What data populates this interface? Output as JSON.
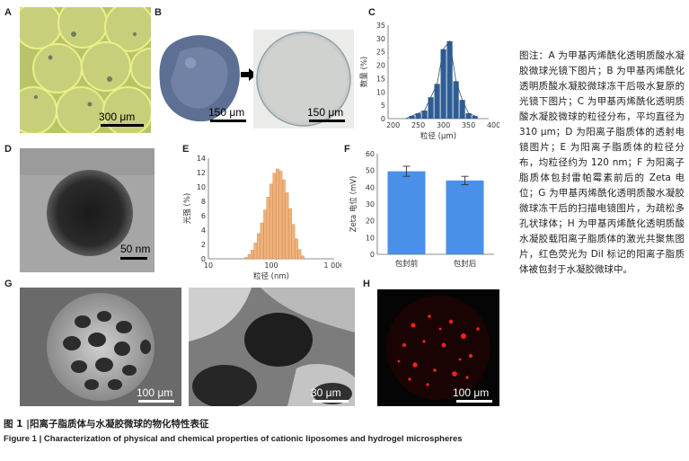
{
  "panels": {
    "A": {
      "label": "A",
      "scale_text": "300 μm"
    },
    "B": {
      "label": "B",
      "left_scale_text": "150 μm",
      "right_scale_text": "150 μm"
    },
    "D": {
      "label": "D",
      "scale_text": "50 nm"
    },
    "G": {
      "label": "G",
      "left_scale_text": "100 μm",
      "right_scale_text": "30 μm"
    },
    "H": {
      "label": "H",
      "scale_text": "100 μm"
    }
  },
  "chart_data": [
    {
      "panel": "C",
      "type": "bar",
      "categories": [
        225,
        237.5,
        250,
        262.5,
        275,
        287.5,
        300,
        312.5,
        325,
        337.5,
        350,
        362.5
      ],
      "values": [
        0,
        1,
        2,
        3,
        8,
        13,
        26,
        29,
        14,
        7,
        2,
        1
      ],
      "xlabel": "粒径 (μm)",
      "ylabel": "数量 (%)",
      "xlim": [
        190,
        390
      ],
      "ylim": [
        0,
        35
      ],
      "xticks": [
        200,
        250,
        300,
        350,
        400
      ],
      "yticks": [
        0,
        5,
        10,
        15,
        20,
        25,
        30,
        35
      ],
      "color": "#2f5d93"
    },
    {
      "panel": "E",
      "type": "bar",
      "x_log": true,
      "x": [
        40,
        45,
        50,
        56,
        63,
        71,
        80,
        89,
        100,
        112,
        126,
        141,
        158,
        178,
        200,
        224,
        251,
        282,
        316
      ],
      "values": [
        0.2,
        0.6,
        1.2,
        2.2,
        3.5,
        5.0,
        6.8,
        8.6,
        10.4,
        11.9,
        12.5,
        12.2,
        11.0,
        9.2,
        7.0,
        4.8,
        2.8,
        1.3,
        0.4
      ],
      "xlabel": "粒径 (nm)",
      "ylabel": "光强 (%)",
      "xlim": [
        10,
        1000
      ],
      "ylim": [
        0,
        14
      ],
      "xticks": [
        "10",
        "100",
        "1 000"
      ],
      "yticks": [
        0,
        2,
        4,
        6,
        8,
        10,
        12,
        14
      ],
      "color": "#f0b27a"
    },
    {
      "panel": "F",
      "type": "bar",
      "categories": [
        "包封前",
        "包封后"
      ],
      "values": [
        49.5,
        44
      ],
      "errors": [
        3,
        2.5
      ],
      "xlabel": "",
      "ylabel": "Zeta 电位 (mV)",
      "ylim": [
        0,
        60
      ],
      "yticks": [
        0,
        10,
        20,
        30,
        40,
        50,
        60
      ],
      "color": "#4a8fe8"
    }
  ],
  "caption_zh": "图注：A 为甲基丙烯酰化透明质酸水凝胶微球光镜下图片；B 为甲基丙烯酰化透明质酸水凝胶微球冻干后吸水复原的光镜下图片；C 为甲基丙烯酰化透明质酸水凝胶微球的粒径分布，平均直径为 310 μm；D 为阳离子脂质体的透射电镜图片；E 为阳离子脂质体的粒径分布，均粒径约为 120 nm；F 为阳离子脂质体包封雷帕霉素前后的 Zeta 电位；G 为甲基丙烯酰化透明质酸水凝胶微球冻干后的扫描电镜图片，为疏松多孔状球体；H 为甲基丙烯酰化透明质酸水凝胶载阳离子脂质体的激光共聚焦图片，红色荧光为 DiI 标记的阳离子脂质体被包封于水凝胶微球中。",
  "figure_title_zh": "图 1  |阳离子脂质体与水凝胶微球的物化特性表征",
  "figure_title_en": "Figure 1  |  Characterization of physical and chemical properties of cationic liposomes and hydrogel microspheres"
}
